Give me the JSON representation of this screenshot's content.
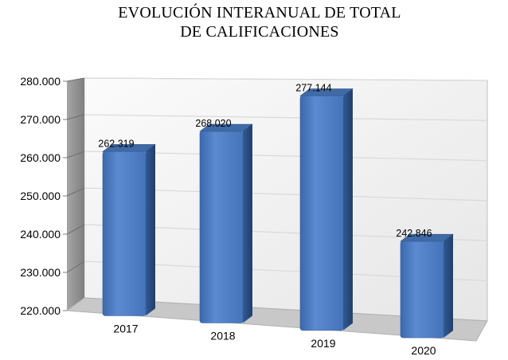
{
  "chart_data": {
    "type": "bar",
    "title_line1": "EVOLUCIÓN INTERANUAL DE TOTAL",
    "title_line2": "DE CALIFICACIONES",
    "categories": [
      "2017",
      "2018",
      "2019",
      "2020"
    ],
    "values": [
      262319,
      268020,
      277144,
      242846
    ],
    "value_labels": [
      "262.319",
      "268.020",
      "277.144",
      "242.846"
    ],
    "yticks": [
      "220.000",
      "230.000",
      "240.000",
      "250.000",
      "260.000",
      "270.000",
      "280.000"
    ],
    "ylim": [
      220000,
      280000
    ],
    "xlabel": "",
    "ylabel": "",
    "grid": true,
    "legend": "none",
    "style": "3d-column",
    "colors": {
      "bar": "#4f7fc4",
      "bar_dark": "#2e5487",
      "wall": "#f2f2f2",
      "side_wall": "#8c8c8c",
      "floor": "#c8c8c8",
      "grid": "#d9d9d9"
    }
  }
}
